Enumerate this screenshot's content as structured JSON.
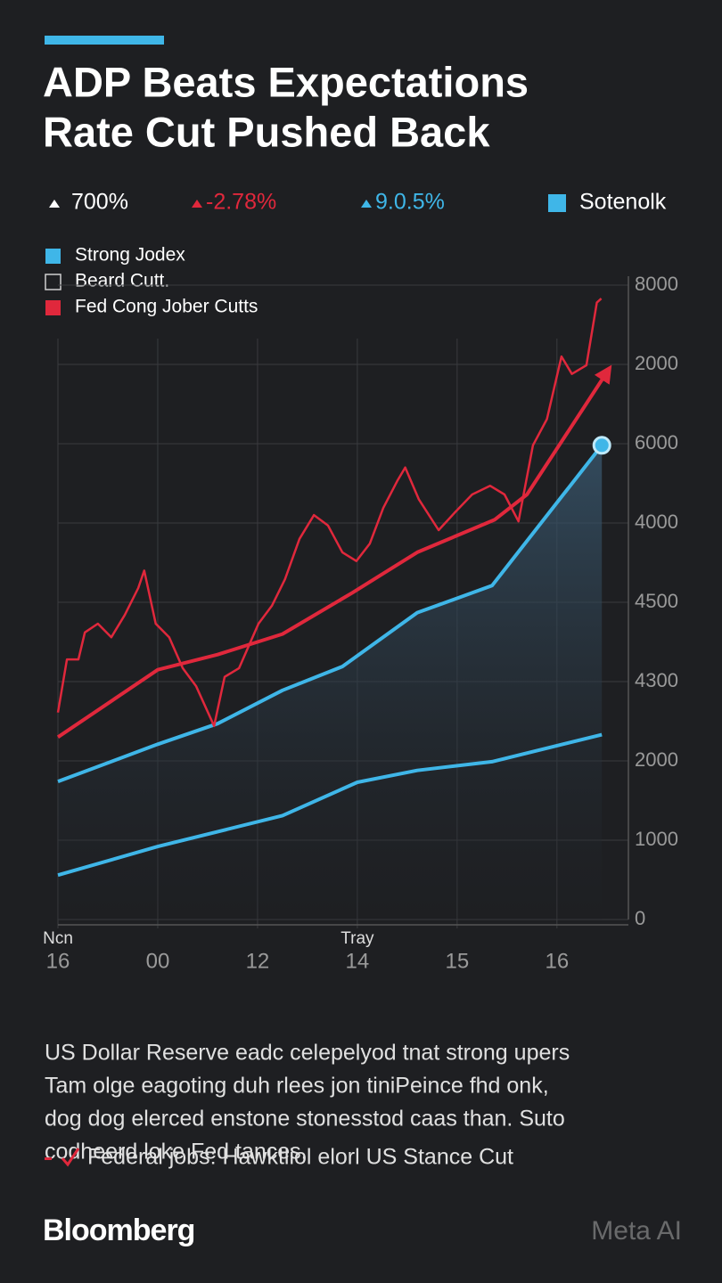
{
  "chart_data": {
    "type": "line",
    "title_lines": [
      "ADP Beats Expectations",
      "Rate Cut Pushed Back"
    ],
    "stats": [
      {
        "text": "700%",
        "color": "#ffffff"
      },
      {
        "text": "-2.78%",
        "color": "#e0283c"
      },
      {
        "text": "9.0.5%",
        "color": "#3fb6e8"
      }
    ],
    "stats_legend": {
      "text": "Sotenolk",
      "color": "#3fb6e8"
    },
    "legend": [
      {
        "label": "Strong Jodex",
        "color": "#3fb6e8",
        "marker": "filled"
      },
      {
        "label": "Beard Cutt.",
        "color": "#cfcfcf",
        "marker": "outline"
      },
      {
        "label": "Fed Cong Jober Cutts",
        "color": "#e0283c",
        "marker": "filled"
      }
    ],
    "xlim": [
      0,
      11.2
    ],
    "xticks": [
      {
        "value": 0,
        "label": "16"
      },
      {
        "value": 2,
        "label": "00"
      },
      {
        "value": 4,
        "label": "12"
      },
      {
        "value": 6,
        "label": "14"
      },
      {
        "value": 8,
        "label": "15"
      },
      {
        "value": 10,
        "label": "16"
      }
    ],
    "x_annotations": [
      {
        "value": 0,
        "label": "Ncn"
      },
      {
        "value": 6,
        "label": "Tray"
      }
    ],
    "ylim": [
      0,
      8000
    ],
    "yticks": [
      0,
      1000,
      2000,
      {
        "value": 3000,
        "label": "4300"
      },
      {
        "value": 4000,
        "label": "4500"
      },
      {
        "value": 5000,
        "label": "4000"
      },
      6000,
      {
        "value": 7000,
        "label": "2000"
      },
      8000
    ],
    "grid": true,
    "series": [
      {
        "color": "#3fb6e8",
        "style": "area",
        "end_dot": true,
        "x": [
          0,
          2.0,
          3.2,
          4.5,
          5.7,
          7.2,
          8.7,
          10.9
        ],
        "values": [
          1740,
          2210,
          2470,
          2890,
          3190,
          3870,
          4210,
          5980
        ]
      },
      {
        "color": "#3fb6e8",
        "style": "line",
        "x": [
          0,
          2.0,
          4.5,
          6.0,
          7.2,
          8.7,
          10.9
        ],
        "values": [
          560,
          920,
          1310,
          1730,
          1880,
          1990,
          2330
        ]
      },
      {
        "color": "#e0283c",
        "style": "arrow",
        "x": [
          0,
          2.0,
          3.2,
          4.5,
          5.9,
          7.2,
          8.75,
          9.4,
          11.0
        ],
        "values": [
          2300,
          3150,
          3340,
          3600,
          4120,
          4630,
          5040,
          5360,
          6900
        ]
      },
      {
        "color": "#e0283c",
        "style": "thin",
        "x": [
          0,
          0.18,
          0.41,
          0.54,
          0.8,
          1.07,
          1.34,
          1.61,
          1.73,
          1.96,
          2.23,
          2.5,
          2.77,
          3.13,
          3.34,
          3.63,
          4.02,
          4.29,
          4.55,
          4.84,
          5.13,
          5.41,
          5.7,
          5.98,
          6.25,
          6.52,
          6.8,
          6.96,
          7.23,
          7.63,
          7.95,
          8.3,
          8.66,
          8.95,
          9.23,
          9.52,
          9.8,
          10.09,
          10.3,
          10.59,
          10.8,
          10.89
        ],
        "values": [
          2610,
          3280,
          3280,
          3620,
          3730,
          3560,
          3840,
          4180,
          4400,
          3730,
          3560,
          3170,
          2940,
          2440,
          3060,
          3170,
          3730,
          3960,
          4290,
          4800,
          5100,
          4970,
          4630,
          4520,
          4740,
          5190,
          5530,
          5700,
          5300,
          4910,
          5130,
          5360,
          5470,
          5360,
          5020,
          5980,
          6310,
          7100,
          6880,
          6990,
          7780,
          7830
        ]
      }
    ],
    "body_lines": [
      "US Dollar Reserve eadc celepelyod tnat strong upers",
      "Tam olge eagoting duh rlees jon tiniPeince fhd onk,",
      "dog dog elerced enstone stonesstod caas than. Suto",
      "codheerd loke Fed tances."
    ],
    "bullet": "Federal jobs:  Hawktliol elorl US Stance Cut",
    "brand": "Bloomberg",
    "watermark": "Meta AI"
  }
}
